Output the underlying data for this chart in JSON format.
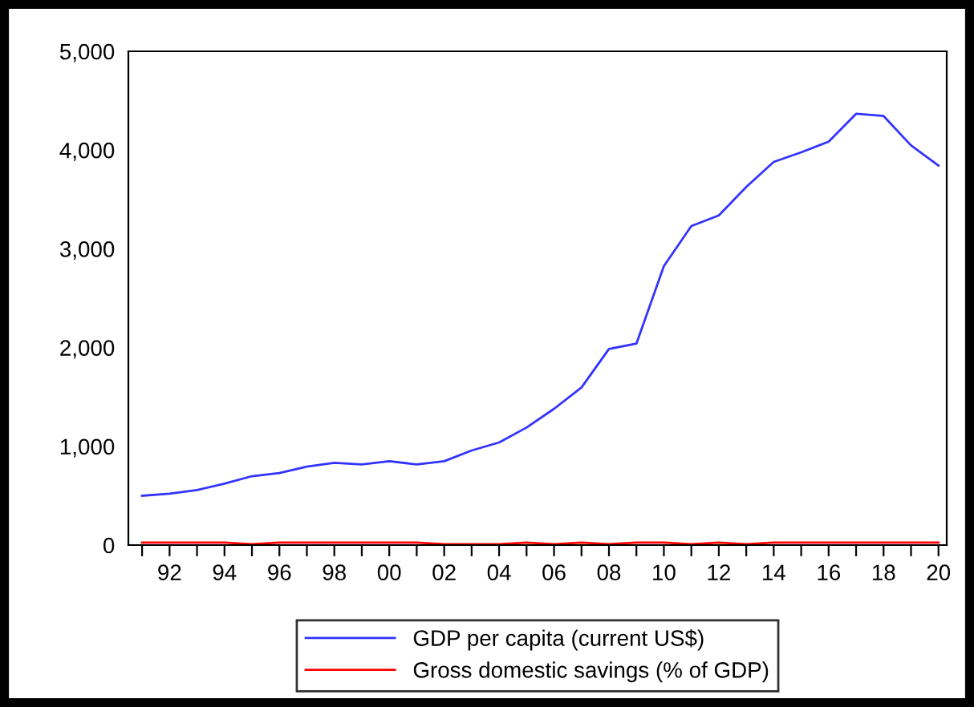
{
  "chart_data": {
    "type": "line",
    "x": [
      1991,
      1992,
      1993,
      1994,
      1995,
      1996,
      1997,
      1998,
      1999,
      2000,
      2001,
      2002,
      2003,
      2004,
      2005,
      2006,
      2007,
      2008,
      2009,
      2010,
      2011,
      2012,
      2013,
      2014,
      2015,
      2016,
      2017,
      2018,
      2019,
      2020
    ],
    "series": [
      {
        "name": "GDP per capita (current US$)",
        "color": "#3333ff",
        "values": [
          500,
          520,
          557,
          622,
          698,
          730,
          795,
          833,
          817,
          849,
          817,
          849,
          958,
          1039,
          1190,
          1380,
          1596,
          1986,
          2040,
          2825,
          3230,
          3338,
          3626,
          3880,
          3977,
          4085,
          4367,
          4345,
          4047,
          3842
        ]
      },
      {
        "name": "Gross domestic savings (% of GDP)",
        "color": "#ff0000",
        "values": [
          25,
          25,
          25,
          25,
          10,
          25,
          25,
          25,
          25,
          25,
          25,
          10,
          10,
          10,
          25,
          10,
          25,
          10,
          25,
          25,
          10,
          25,
          10,
          25,
          25,
          25,
          25,
          25,
          25,
          25
        ]
      }
    ],
    "xlim": [
      1990.5,
      2020.3
    ],
    "xticks": [
      {
        "value": 1991,
        "label": null
      },
      {
        "value": 1992,
        "label": "92"
      },
      {
        "value": 1993,
        "label": null
      },
      {
        "value": 1994,
        "label": "94"
      },
      {
        "value": 1995,
        "label": null
      },
      {
        "value": 1996,
        "label": "96"
      },
      {
        "value": 1997,
        "label": null
      },
      {
        "value": 1998,
        "label": "98"
      },
      {
        "value": 1999,
        "label": null
      },
      {
        "value": 2000,
        "label": "00"
      },
      {
        "value": 2001,
        "label": null
      },
      {
        "value": 2002,
        "label": "02"
      },
      {
        "value": 2003,
        "label": null
      },
      {
        "value": 2004,
        "label": "04"
      },
      {
        "value": 2005,
        "label": null
      },
      {
        "value": 2006,
        "label": "06"
      },
      {
        "value": 2007,
        "label": null
      },
      {
        "value": 2008,
        "label": "08"
      },
      {
        "value": 2009,
        "label": null
      },
      {
        "value": 2010,
        "label": "10"
      },
      {
        "value": 2011,
        "label": null
      },
      {
        "value": 2012,
        "label": "12"
      },
      {
        "value": 2013,
        "label": null
      },
      {
        "value": 2014,
        "label": "14"
      },
      {
        "value": 2015,
        "label": null
      },
      {
        "value": 2016,
        "label": "16"
      },
      {
        "value": 2017,
        "label": null
      },
      {
        "value": 2018,
        "label": "18"
      },
      {
        "value": 2019,
        "label": null
      },
      {
        "value": 2020,
        "label": "20"
      }
    ],
    "ylim": [
      0,
      5000
    ],
    "yticks": [
      0,
      {
        "value": 1000,
        "label": "1,000"
      },
      {
        "value": 2000,
        "label": "2,000"
      },
      {
        "value": 3000,
        "label": "3,000"
      },
      {
        "value": 4000,
        "label": "4,000"
      },
      {
        "value": 5000,
        "label": "5,000"
      }
    ],
    "grid": false,
    "legend": "bottom",
    "marker": "none",
    "line_style": "solid"
  }
}
